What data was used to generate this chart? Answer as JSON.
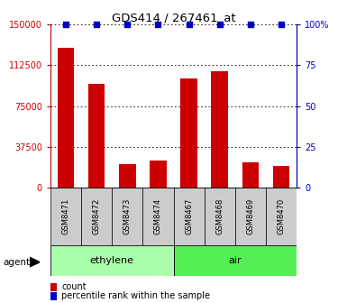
{
  "title": "GDS414 / 267461_at",
  "categories": [
    "GSM8471",
    "GSM8472",
    "GSM8473",
    "GSM8474",
    "GSM8467",
    "GSM8468",
    "GSM8469",
    "GSM8470"
  ],
  "counts": [
    128000,
    95000,
    22000,
    25000,
    100000,
    107000,
    23000,
    20000
  ],
  "groups": [
    {
      "label": "ethylene",
      "indices": [
        0,
        1,
        2,
        3
      ],
      "color": "#aaffaa"
    },
    {
      "label": "air",
      "indices": [
        4,
        5,
        6,
        7
      ],
      "color": "#55ee55"
    }
  ],
  "agent_label": "agent",
  "bar_color": "#cc0000",
  "dot_color": "#0000cc",
  "ylim_left": [
    0,
    150000
  ],
  "ylim_right": [
    0,
    100
  ],
  "yticks_left": [
    0,
    37500,
    75000,
    112500,
    150000
  ],
  "yticks_right": [
    0,
    25,
    50,
    75,
    100
  ],
  "legend_count_label": "count",
  "legend_percentile_label": "percentile rank within the sample",
  "bar_width": 0.55,
  "label_box_color": "#cccccc",
  "title_fontsize": 9.5
}
